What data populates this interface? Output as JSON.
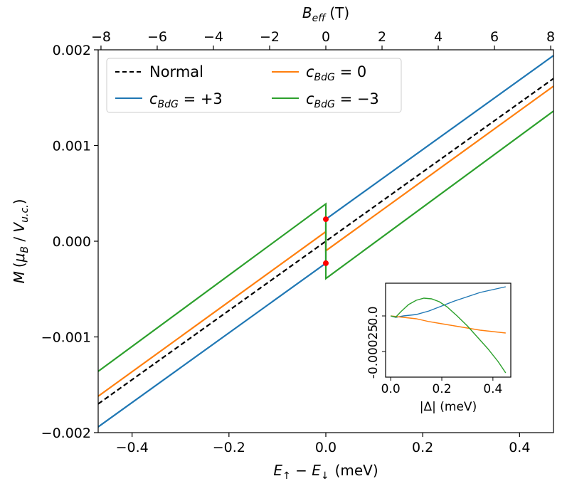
{
  "chart_data": {
    "type": "line",
    "main": {
      "xlabel": "E↑ − E↓ (meV)",
      "xlabel_parts": {
        "E": "E",
        "up": "↑",
        "minus": " − ",
        "down": "↓",
        "unit": "(meV)"
      },
      "ylabel": "M (μB / Vu.c.)",
      "ylabel_parts": {
        "M": "M",
        "open": "(",
        "mu": "μ",
        "B": "B",
        "slash": " / ",
        "V": "V",
        "uc": "u.c.",
        "close": ")"
      },
      "top_xlabel": "Beff (T)",
      "top_xlabel_parts": {
        "B": "B",
        "eff": "eff",
        "unit": "(T)"
      },
      "xlim": [
        -0.47,
        0.47
      ],
      "ylim": [
        -0.002,
        0.002
      ],
      "top_xlim": [
        -8.1,
        8.1
      ],
      "xticks": [
        -0.4,
        -0.2,
        0.0,
        0.2,
        0.4
      ],
      "xtick_labels": [
        "−0.4",
        "−0.2",
        "0.0",
        "0.2",
        "0.4"
      ],
      "yticks": [
        -0.002,
        -0.001,
        0.0,
        0.001,
        0.002
      ],
      "ytick_labels": [
        "−0.002",
        "−0.001",
        "0.000",
        "0.001",
        "0.002"
      ],
      "top_xticks": [
        -8,
        -6,
        -4,
        -2,
        0,
        2,
        4,
        6,
        8
      ],
      "top_xtick_labels": [
        "−8",
        "−6",
        "−4",
        "−2",
        "0",
        "2",
        "4",
        "6",
        "8"
      ],
      "legend_position": "upper-left",
      "series": [
        {
          "name": "Normal",
          "label": "Normal",
          "color": "#000000",
          "dash": true,
          "points": [
            [
              -0.47,
              -0.0017
            ],
            [
              0.47,
              0.0017
            ]
          ]
        },
        {
          "name": "cBdG = +3",
          "label_c": "c",
          "label_sub": "BdG",
          "label_val": " = +3",
          "color": "#1f77b4",
          "dash": false,
          "points": [
            [
              -0.47,
              -0.00194
            ],
            [
              0.0,
              -0.00023
            ],
            [
              0.0,
              0.00023
            ],
            [
              0.47,
              0.00194
            ]
          ]
        },
        {
          "name": "cBdG = 0",
          "label_c": "c",
          "label_sub": "BdG",
          "label_val": " = 0",
          "color": "#ff7f0e",
          "dash": false,
          "points": [
            [
              -0.47,
              -0.00162
            ],
            [
              0.0,
              0.0001
            ],
            [
              0.0,
              -0.0001
            ],
            [
              0.47,
              0.00162
            ]
          ]
        },
        {
          "name": "cBdG = −3",
          "label_c": "c",
          "label_sub": "BdG",
          "label_val": " = −3",
          "color": "#2ca02c",
          "dash": false,
          "points": [
            [
              -0.47,
              -0.00136
            ],
            [
              0.0,
              0.00039
            ],
            [
              0.0,
              -0.00039
            ],
            [
              0.47,
              0.00136
            ]
          ]
        }
      ],
      "markers": {
        "color": "#ff0000",
        "points": [
          [
            0.0,
            0.00023
          ],
          [
            0.0,
            -0.00023
          ]
        ]
      }
    },
    "inset": {
      "xlabel": "|Δ| (meV)",
      "xlim": [
        -0.02,
        0.47
      ],
      "ylim": [
        -0.00043,
        0.00023
      ],
      "xticks": [
        0.0,
        0.2,
        0.4
      ],
      "xtick_labels": [
        "0.0",
        "0.2",
        "0.4"
      ],
      "yticks": [
        0.0,
        -0.00025
      ],
      "ytick_labels": [
        "0.0",
        "-0.00025"
      ],
      "series": [
        {
          "name": "cBdG = +3",
          "color": "#1f77b4",
          "points": [
            [
              0.0,
              0.0
            ],
            [
              0.02,
              -1e-05
            ],
            [
              0.05,
              0.0
            ],
            [
              0.1,
              1e-05
            ],
            [
              0.15,
              3.5e-05
            ],
            [
              0.2,
              7e-05
            ],
            [
              0.25,
              0.000105
            ],
            [
              0.3,
              0.000135
            ],
            [
              0.35,
              0.000165
            ],
            [
              0.4,
              0.000185
            ],
            [
              0.45,
              0.000205
            ]
          ]
        },
        {
          "name": "cBdG = 0",
          "color": "#ff7f0e",
          "points": [
            [
              0.0,
              0.0
            ],
            [
              0.05,
              -1e-05
            ],
            [
              0.1,
              -2e-05
            ],
            [
              0.15,
              -4e-05
            ],
            [
              0.2,
              -5.5e-05
            ],
            [
              0.25,
              -7e-05
            ],
            [
              0.3,
              -8.5e-05
            ],
            [
              0.35,
              -0.0001
            ],
            [
              0.4,
              -0.00011
            ],
            [
              0.45,
              -0.00012
            ]
          ]
        },
        {
          "name": "cBdG = −3",
          "color": "#2ca02c",
          "points": [
            [
              0.0,
              0.0
            ],
            [
              0.02,
              -8e-06
            ],
            [
              0.04,
              3e-05
            ],
            [
              0.07,
              8e-05
            ],
            [
              0.1,
              0.00011
            ],
            [
              0.13,
              0.000125
            ],
            [
              0.16,
              0.00012
            ],
            [
              0.19,
              0.0001
            ],
            [
              0.22,
              6.5e-05
            ],
            [
              0.26,
              0.0
            ],
            [
              0.3,
              -7e-05
            ],
            [
              0.34,
              -0.00015
            ],
            [
              0.38,
              -0.00023
            ],
            [
              0.42,
              -0.00032
            ],
            [
              0.45,
              -0.0004
            ]
          ]
        }
      ]
    }
  }
}
